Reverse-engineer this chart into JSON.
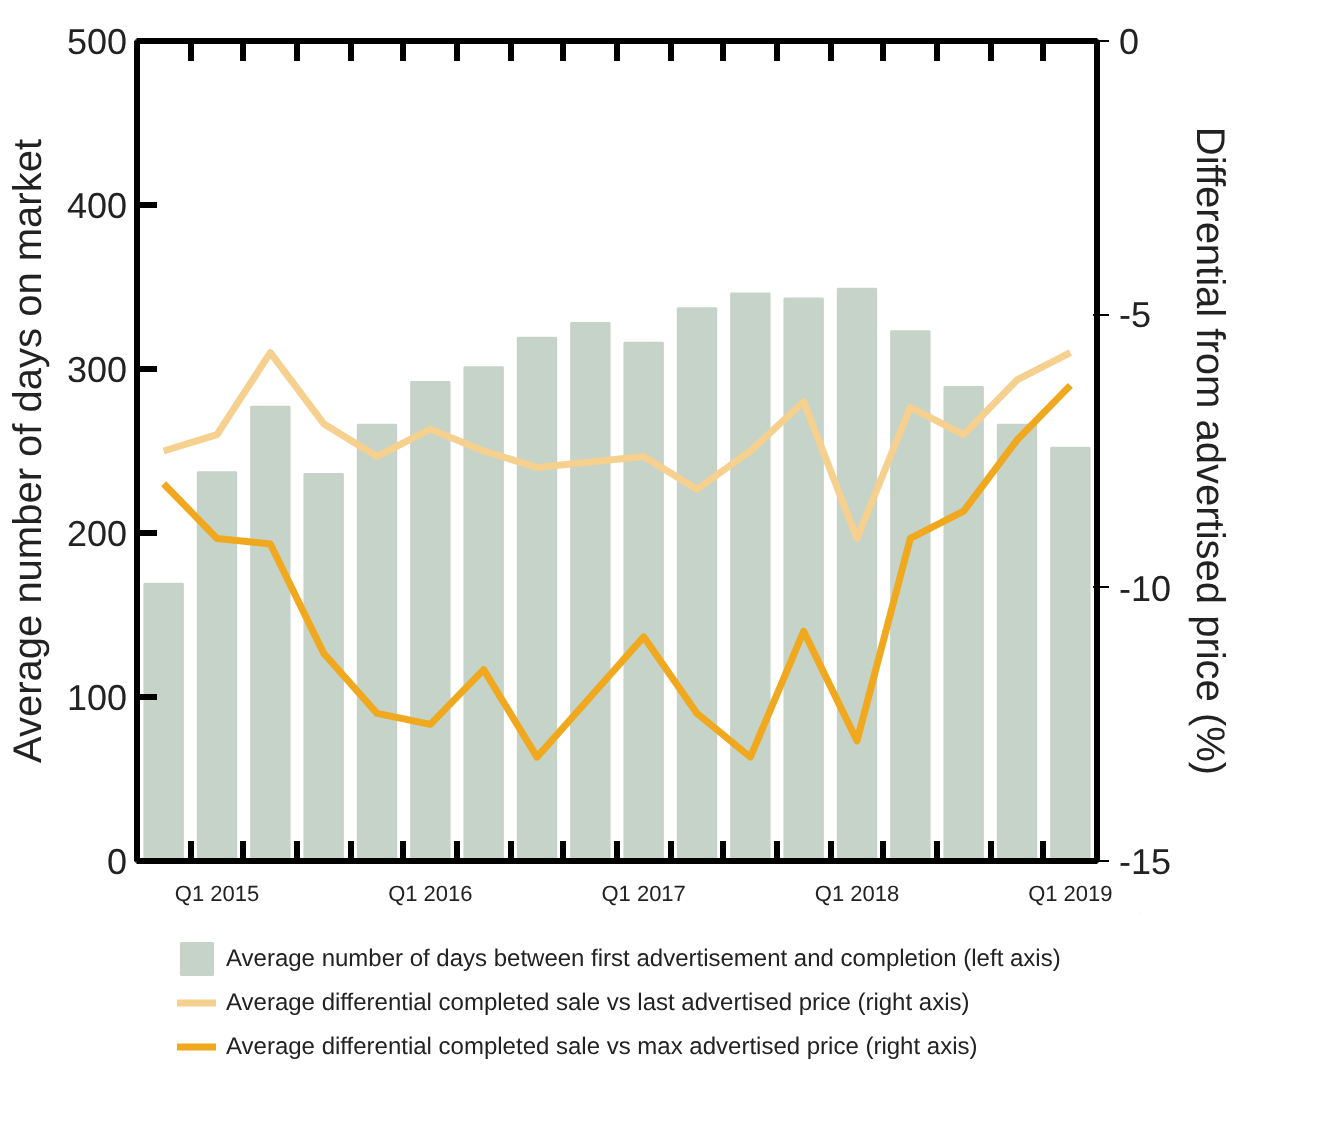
{
  "chart_data": {
    "type": "bar",
    "categories": [
      null,
      "Q1 2015",
      null,
      null,
      null,
      "Q1 2016",
      null,
      null,
      null,
      "Q1 2017",
      null,
      null,
      null,
      "Q1 2018",
      null,
      null,
      null,
      "Q1 2019"
    ],
    "series": [
      {
        "name": "Average number of days between first advertisement and completion (left axis)",
        "color": "#c5d3c8",
        "values": [
          169,
          237,
          277,
          236,
          266,
          292,
          301,
          319,
          328,
          316,
          337,
          346,
          343,
          349,
          323,
          289,
          266,
          252
        ]
      },
      {
        "name": "Average differential completed sale vs last advertised price (right axis)",
        "type": "line",
        "axis": "y2",
        "color": "#f5d08f",
        "values": [
          -7.5,
          -7.2,
          -5.7,
          -7.0,
          -7.6,
          -7.1,
          -7.5,
          -7.8,
          -7.7,
          -7.6,
          -8.2,
          -7.5,
          -6.6,
          -9.1,
          -6.7,
          -7.2,
          -6.2,
          -5.7
        ]
      },
      {
        "name": "Average differential completed sale vs max advertised price (right axis)",
        "type": "line",
        "axis": "y2",
        "color": "#f0a81e",
        "values": [
          -8.1,
          -9.1,
          -9.2,
          -11.2,
          -12.3,
          -12.5,
          -11.5,
          -13.1,
          -12.0,
          -10.9,
          -12.3,
          -13.1,
          -10.8,
          -12.8,
          -9.1,
          -8.6,
          -7.3,
          -6.3
        ]
      }
    ],
    "ylabel": "Average number of days on market",
    "y2label": "Differential from advertised price (%)",
    "ylim": [
      0,
      500
    ],
    "yticks": [
      0,
      100,
      200,
      300,
      400,
      500
    ],
    "y2lim": [
      -15,
      0
    ],
    "y2ticks": [
      0,
      -5,
      -10,
      -15
    ],
    "legend": "bottom"
  }
}
